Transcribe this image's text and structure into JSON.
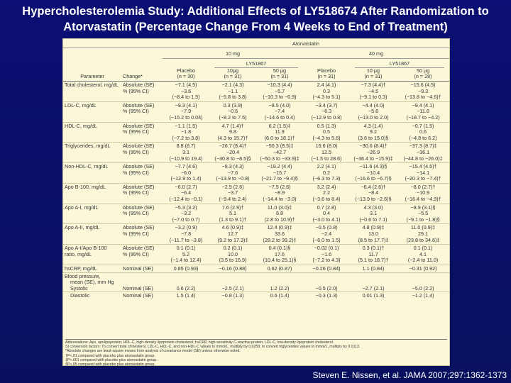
{
  "title": "Hypercholesterolemia Study: Additional Effects of LY518674 After Randomization to Atorvastatin (Percentage Change From 4 Weeks to End of Treatment)",
  "header": {
    "atorvastatin": "Atorvastatin",
    "dose_10": "10 mg",
    "dose_40": "40 mg",
    "ly_10": "LY51867",
    "ly_40": "LY51867",
    "col_parameter": "Parameter",
    "col_change": "Change*",
    "cols": [
      {
        "l1": "Placebo",
        "l2": "(n = 30)"
      },
      {
        "l1": "10μg",
        "l2": "(n = 31)"
      },
      {
        "l1": "50 μg",
        "l2": "(n = 31)"
      },
      {
        "l1": "Placebo",
        "l2": "(n = 31)"
      },
      {
        "l1": "10 μg",
        "l2": "(n = 31)"
      },
      {
        "l1": "50 μg",
        "l2": "(n = 28)"
      }
    ]
  },
  "rows": [
    {
      "param": "Total cholesterol, mg/dL",
      "abs": [
        "−7.1 (4.5)",
        "−2.1 (4.3)",
        "−10.3 (4.4)",
        "2.4 (4.1)",
        "−7.3 (4.4)†",
        "−15.6 (4.5)"
      ],
      "ci_a": [
        "−3.6",
        "−1.1",
        "−5.7",
        "0.3",
        "−4.5",
        "−9.3"
      ],
      "ci_b": [
        "(−8.4 to 1.5)",
        "(−5.8 to 3.8)",
        "(−10.3 to −0.9)",
        "(−4.3 to 5.1)",
        "(−9.1 to 0.3)",
        "(−13.8 to −4.6)†"
      ]
    },
    {
      "param": "LDL-C, mg/dL",
      "abs": [
        "−9.3 (4.1)",
        "0.3 (3.9)",
        "−8.5 (4.0)",
        "−3.4 (3.7)",
        "−4.4 (4.0)",
        "−9.4 (4.1)"
      ],
      "ci_a": [
        "−7.9",
        "−0.6",
        "−7.4",
        "−6.3",
        "−5.8",
        "−11.8"
      ],
      "ci_b": [
        "(−15.2 to 0.04)",
        "(−8.2 to 7.5)",
        "(−14.6 to 0.4)",
        "(−12.9 to 0.8)",
        "(−13.0 to 2.0)",
        "(−18.7 to −4.2)"
      ]
    },
    {
      "param": "HDL-C, mg/dL",
      "abs": [
        "−1.1 (1.5)",
        "4.7 (1.4)†",
        "6.2 (1.5)‡",
        "0.5 (1.3)",
        "4.3 (1.4)",
        "−0.7 (1.5)"
      ],
      "ci_a": [
        "−1.8",
        "9.8",
        "11.9",
        "0.5",
        "9.2",
        "0.6"
      ],
      "ci_b": [
        "(−7.2 to 3.8)",
        "(4.3 to 15.7)†",
        "(6.0 to 18.1)†",
        "(−4.3 to 5.6)",
        "(3.6 to 15.0)§",
        "(−4.8 to 6.2)"
      ]
    },
    {
      "param": "Triglycerides, mg/dL",
      "abs": [
        "8.8 (8.7)",
        "−26.7 (8.4)†",
        "−50.3 (8.5)‡",
        "16.6 (8.0)",
        "−30.6 (8.4)†",
        "−37.3 (8.7)‡"
      ],
      "ci_a": [
        "3.1",
        "−20.4",
        "−42.7",
        "12.5",
        "−26.9",
        "−36.1"
      ],
      "ci_b": [
        "(−10.9 to 19.4)",
        "(−30.8 to −8.5)§",
        "(−50.3 to −33.9)‡",
        "(−1.5 to 28.6)",
        "(−36.4 to −15.9)‡",
        "(−44.8 to −26.0)‡"
      ]
    },
    {
      "param": "Non-HDL-C, mg/dL",
      "abs": [
        "−7.7 (4.6)",
        "−8.3 (4.3)",
        "−19.2 (4.4)",
        "2.2 (4.1)",
        "−11.6 (4.3)§",
        "−15.4 (4.5)†"
      ],
      "ci_a": [
        "−6.0",
        "−7.6",
        "−15.7",
        "0.2",
        "−10.4",
        "−14.1"
      ],
      "ci_b": [
        "(−12.9 to 1.4)",
        "(−13.9 to −0.8)",
        "(−21.7 to −9.4)§",
        "(−6.3 to 7.3)",
        "(−16.6 to −6.7)§",
        "(−20.3 to −7.4)†"
      ]
    },
    {
      "param": "Apo B-100, mg/dL",
      "abs": [
        "−6.0 (2.7)",
        "−2.9 (2.6)",
        "−7.5 (2.6)",
        "3.2 (2.4)",
        "−6.4 (2.6)†",
        "−8.0 (2.7)†"
      ],
      "ci_a": [
        "−6.4",
        "−3.7",
        "−8.9",
        "2.2",
        "−8.4",
        "−10.9"
      ],
      "ci_b": [
        "(−12.4 to −0.1)",
        "(−9.4 to 2.4)",
        "(−14.4 to −3.0)",
        "(−3.6 to 8.4)",
        "(−13.9 to −2.6)§",
        "(−16.4 to −4.9)†"
      ]
    },
    {
      "param": "Apo A-I, mg/dL",
      "abs": [
        "−5.3 (3.2)",
        "7.6 (2.9)†",
        "11.0 (3.0)‡",
        "0.7 (2.8)",
        "4.3 (3.0)",
        "−8.9 (3.1)§"
      ],
      "ci_a": [
        "−3.2",
        "5.1",
        "6.8",
        "0.4",
        "3.1",
        "−5.5"
      ],
      "ci_b": [
        "(−7.0 to 0.7)",
        "(1.3 to 9.1)†",
        "(2.8 to 10.9)†",
        "(−3.0 to 4.1)",
        "(−0.6 to 7.1)",
        "(−9.1 to −1.8)§"
      ]
    },
    {
      "param": "Apo A-II, mg/dL",
      "abs": [
        "−3.2 (0.9)",
        "4.6 (0.9)‡",
        "12.4 (0.9)‡",
        "−0.5 (0.8)",
        "4.8 (0.9)‡",
        "11.0 (0.9)‡"
      ],
      "ci_a": [
        "−7.8",
        "12.7",
        "33.6",
        "−2.4",
        "13.0",
        "29.1"
      ],
      "ci_b": [
        "(−11.7 to −3.8)",
        "(9.2 to 17.3)‡",
        "(28.2 to 39.2)‡",
        "(−6.0 to 1.5)",
        "(8.5 to 17.7)‡",
        "(23.8 to 34.6)‡"
      ]
    },
    {
      "param": "Apo A-I/Apo B-100",
      "param2": "ratio, mg/dL",
      "abs": [
        "0.1 (0.1)",
        "0.2 (0.1)",
        "0.4 (0.1)§",
        "−0.02 (0.1)",
        "0.3 (0.1)†",
        "0.1 (0.1)"
      ],
      "ci_a": [
        "5.2",
        "10.0",
        "17.6",
        "−1.6",
        "11.7",
        "4.1"
      ],
      "ci_b": [
        "(−1.4 to 12.4)",
        "(3.5 to 16.9)",
        "(10.4 to 25.1)§",
        "(−7.2 to 4.3)",
        "(5.1 to 18.7)†",
        "(−2.4 to 11.0)"
      ]
    }
  ],
  "hscrp": {
    "param": "hsCRP, mg/dL",
    "change": "Nominal (SE)",
    "vals": [
      "0.85 (0.93)",
      "−0.16 (0.88)",
      "0.62 (0.87)",
      "−0.26 (0.84)",
      "1.1 (0.84)",
      "−0.31 (0.92)"
    ]
  },
  "bp": {
    "head1": "Blood pressure,",
    "head2": "mean (SE), mm Hg",
    "systolic": {
      "param": "Systolic",
      "change": "Nominal (SE)",
      "vals": [
        "0.6 (2.2)",
        "−2.5 (2.1)",
        "1.2 (2.2)",
        "−0.5 (2.0)",
        "−2.7 (2.1)",
        "−5.0 (2.2)"
      ]
    },
    "diastolic": {
      "param": "Diastolic",
      "change": "Nominal (SE)",
      "vals": [
        "1.5 (1.4)",
        "−0.8 (1.3)",
        "0.6 (1.4)",
        "−0.3 (1.3)",
        "0.01 (1.3)",
        "−1.2 (1.4)"
      ]
    }
  },
  "labels": {
    "absolute": "Absolute (SE)",
    "ci": "% (95% CI)"
  },
  "notes": [
    "Abbreviations: Apo, apolipoprotein; HDL-C, high-density lipoprotein cholesterol; hsCRP, high-sensitivity C-reactive protein; LDL-C, low-density lipoprotein cholesterol.",
    "SI conversion factors: To convert total cholesterol, LDL-C, HDL-C, and non-HDL-C values to mmol/L, multiply by 0.0259; to convert triglycerides values to mmol/L, multiply by 0.0113.",
    "*Absolute changes are least-square means from analysis of covariance model (SE) unless otherwise noted.",
    "†P<.01 compared with placebo plus atorvastatin group.",
    "‡P<.001 compared with placebo plus atorvastatin group.",
    "§P<.05 compared with placebo plus atorvastatin group."
  ],
  "citation": "Steven E. Nissen, et al. JAMA 2007;297:1362-1373",
  "colors": {
    "background": "#0b0f73",
    "table_bg": "#fbf7d9",
    "title": "#ffffff"
  }
}
